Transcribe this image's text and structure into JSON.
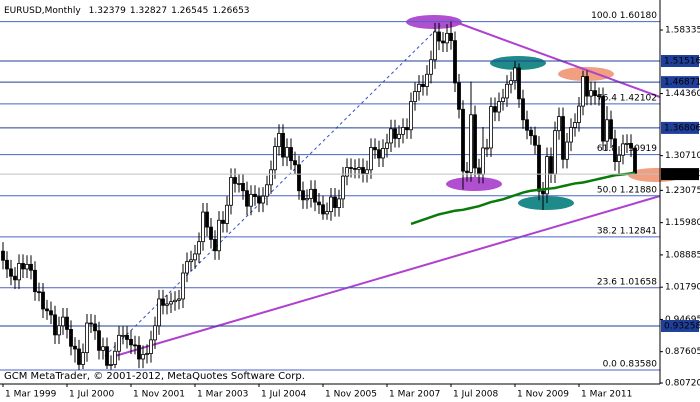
{
  "chart_data": {
    "type": "candlestick",
    "title": "EURUSD,Monthly",
    "footer": "GCM MetaTrader, © 2001-2012, MetaQuotes Software Corp.",
    "categories": [
      "1 Mar 1999",
      null,
      null,
      null,
      null,
      null,
      null,
      null,
      null,
      null,
      null,
      null,
      null,
      null,
      null,
      null,
      "1 Jul 2000",
      null,
      null,
      null,
      null,
      null,
      null,
      null,
      null,
      null,
      null,
      null,
      null,
      null,
      null,
      null,
      "1 Nov 2001",
      null,
      null,
      null,
      null,
      null,
      null,
      null,
      null,
      null,
      null,
      null,
      null,
      null,
      null,
      null,
      "1 Mar 2003",
      null,
      null,
      null,
      null,
      null,
      null,
      null,
      null,
      null,
      null,
      null,
      null,
      null,
      null,
      null,
      "1 Jul 2004",
      null,
      null,
      null,
      null,
      null,
      null,
      null,
      null,
      null,
      null,
      null,
      null,
      null,
      null,
      null,
      "1 Nov 2005",
      null,
      null,
      null,
      null,
      null,
      null,
      null,
      null,
      null,
      null,
      null,
      null,
      null,
      null,
      null,
      "1 Mar 2007",
      null,
      null,
      null,
      null,
      null,
      null,
      null,
      null,
      null,
      null,
      null,
      null,
      null,
      null,
      null,
      "1 Jul 2008",
      null,
      null,
      null,
      null,
      null,
      null,
      null,
      null,
      null,
      null,
      null,
      null,
      null,
      null,
      null,
      "1 Nov 2009",
      null,
      null,
      null,
      null,
      null,
      null,
      null,
      null,
      null,
      null,
      null,
      null,
      null,
      null,
      null,
      "1 Mar 2011",
      null,
      null,
      null,
      null,
      null,
      null,
      null,
      null,
      null,
      null,
      null,
      null,
      null,
      null
    ],
    "open": [
      1.097,
      1.077,
      1.058,
      1.042,
      1.034,
      1.07,
      1.058,
      1.068,
      1.055,
      1.008,
      1.007,
      0.97,
      0.966,
      0.957,
      0.913,
      0.933,
      0.952,
      0.925,
      0.888,
      0.882,
      0.848,
      0.874,
      0.939,
      0.937,
      0.922,
      0.879,
      0.887,
      0.846,
      0.848,
      0.877,
      0.912,
      0.912,
      0.903,
      0.891,
      0.89,
      0.86,
      0.87,
      0.872,
      0.902,
      0.933,
      0.992,
      0.978,
      0.981,
      0.986,
      0.989,
      0.992,
      1.049,
      1.074,
      1.078,
      1.091,
      1.118,
      1.183,
      1.15,
      1.123,
      1.098,
      1.165,
      1.158,
      1.198,
      1.259,
      1.246,
      1.246,
      1.23,
      1.196,
      1.222,
      1.217,
      1.203,
      1.218,
      1.243,
      1.276,
      1.327,
      1.356,
      1.304,
      1.325,
      1.296,
      1.287,
      1.23,
      1.21,
      1.213,
      1.233,
      1.205,
      1.199,
      1.179,
      1.184,
      1.216,
      1.193,
      1.212,
      1.262,
      1.281,
      1.279,
      1.277,
      1.281,
      1.268,
      1.276,
      1.325,
      1.32,
      1.302,
      1.323,
      1.335,
      1.366,
      1.345,
      1.354,
      1.369,
      1.364,
      1.426,
      1.448,
      1.464,
      1.459,
      1.486,
      1.518,
      1.579,
      1.559,
      1.555,
      1.576,
      1.56,
      1.467,
      1.409,
      1.273,
      1.27,
      1.397,
      1.28,
      1.266,
      1.324,
      1.324,
      1.415,
      1.403,
      1.426,
      1.434,
      1.464,
      1.472,
      1.5,
      1.432,
      1.386,
      1.363,
      1.351,
      1.33,
      1.229,
      1.223,
      1.305,
      1.267,
      1.362,
      1.393,
      1.299,
      1.337,
      1.369,
      1.38,
      1.416,
      1.481,
      1.438,
      1.45,
      1.439,
      1.437,
      1.339,
      1.386,
      1.344,
      1.294,
      1.308,
      1.333,
      1.334,
      1.32379
    ],
    "high": [
      1.117,
      1.097,
      1.078,
      1.062,
      1.09,
      1.09,
      1.088,
      1.088,
      1.075,
      1.028,
      1.027,
      0.99,
      0.986,
      0.977,
      0.953,
      0.972,
      0.972,
      0.945,
      0.908,
      0.902,
      0.894,
      0.959,
      0.959,
      0.957,
      0.942,
      0.907,
      0.907,
      0.868,
      0.897,
      0.932,
      0.932,
      0.932,
      0.923,
      0.911,
      0.91,
      0.89,
      0.892,
      0.922,
      0.953,
      1.012,
      1.012,
      1.001,
      1.006,
      1.009,
      1.012,
      1.069,
      1.094,
      1.098,
      1.111,
      1.138,
      1.203,
      1.203,
      1.17,
      1.143,
      1.185,
      1.185,
      1.218,
      1.279,
      1.279,
      1.266,
      1.266,
      1.25,
      1.242,
      1.242,
      1.237,
      1.238,
      1.263,
      1.296,
      1.347,
      1.376,
      1.376,
      1.345,
      1.345,
      1.316,
      1.307,
      1.25,
      1.233,
      1.253,
      1.253,
      1.225,
      1.219,
      1.204,
      1.236,
      1.236,
      1.232,
      1.282,
      1.301,
      1.301,
      1.299,
      1.301,
      1.301,
      1.296,
      1.345,
      1.345,
      1.34,
      1.343,
      1.355,
      1.386,
      1.386,
      1.374,
      1.389,
      1.389,
      1.446,
      1.468,
      1.484,
      1.484,
      1.506,
      1.538,
      1.599,
      1.599,
      1.579,
      1.596,
      1.6018,
      1.58,
      1.487,
      1.429,
      1.293,
      1.47,
      1.417,
      1.3,
      1.37,
      1.344,
      1.435,
      1.435,
      1.446,
      1.454,
      1.484,
      1.492,
      1.5145,
      1.51,
      1.452,
      1.406,
      1.371,
      1.371,
      1.35,
      1.249,
      1.325,
      1.325,
      1.382,
      1.413,
      1.413,
      1.357,
      1.389,
      1.4,
      1.436,
      1.4939,
      1.4939,
      1.47,
      1.47,
      1.457,
      1.457,
      1.416,
      1.406,
      1.364,
      1.328,
      1.353,
      1.354,
      1.354,
      1.32827
    ],
    "low": [
      1.057,
      1.038,
      1.022,
      1.014,
      1.014,
      1.038,
      1.038,
      1.035,
      0.988,
      0.987,
      0.95,
      0.946,
      0.937,
      0.893,
      0.893,
      0.913,
      0.905,
      0.868,
      0.852,
      0.8358,
      0.838,
      0.854,
      0.917,
      0.902,
      0.859,
      0.859,
      0.838,
      0.837,
      0.84,
      0.857,
      0.892,
      0.883,
      0.871,
      0.87,
      0.84,
      0.84,
      0.85,
      0.852,
      0.882,
      0.913,
      0.958,
      0.958,
      0.961,
      0.966,
      0.969,
      0.972,
      1.029,
      1.054,
      1.058,
      1.071,
      1.098,
      1.13,
      1.103,
      1.078,
      1.078,
      1.138,
      1.138,
      1.178,
      1.226,
      1.226,
      1.21,
      1.176,
      1.176,
      1.197,
      1.183,
      1.183,
      1.198,
      1.223,
      1.256,
      1.307,
      1.284,
      1.284,
      1.276,
      1.267,
      1.21,
      1.19,
      1.19,
      1.193,
      1.185,
      1.179,
      1.166,
      1.166,
      1.164,
      1.173,
      1.173,
      1.192,
      1.242,
      1.259,
      1.257,
      1.257,
      1.248,
      1.248,
      1.256,
      1.3,
      1.282,
      1.282,
      1.303,
      1.315,
      1.325,
      1.325,
      1.334,
      1.344,
      1.344,
      1.406,
      1.428,
      1.439,
      1.439,
      1.466,
      1.498,
      1.539,
      1.535,
      1.535,
      1.54,
      1.447,
      1.389,
      1.233,
      1.25,
      1.25,
      1.26,
      1.246,
      1.246,
      1.304,
      1.304,
      1.383,
      1.383,
      1.406,
      1.414,
      1.444,
      1.452,
      1.412,
      1.366,
      1.343,
      1.331,
      1.31,
      1.209,
      1.1876,
      1.203,
      1.247,
      1.247,
      1.342,
      1.279,
      1.279,
      1.317,
      1.349,
      1.36,
      1.396,
      1.418,
      1.418,
      1.419,
      1.417,
      1.319,
      1.319,
      1.324,
      1.274,
      1.262,
      1.288,
      1.313,
      1.304,
      1.26545
    ],
    "close": [
      1.077,
      1.058,
      1.042,
      1.034,
      1.07,
      1.058,
      1.068,
      1.055,
      1.008,
      1.007,
      0.97,
      0.966,
      0.957,
      0.913,
      0.933,
      0.952,
      0.925,
      0.888,
      0.882,
      0.848,
      0.874,
      0.939,
      0.937,
      0.922,
      0.879,
      0.887,
      0.846,
      0.848,
      0.877,
      0.912,
      0.912,
      0.903,
      0.891,
      0.89,
      0.86,
      0.87,
      0.872,
      0.902,
      0.933,
      0.992,
      0.978,
      0.981,
      0.986,
      0.989,
      0.992,
      1.049,
      1.074,
      1.078,
      1.091,
      1.118,
      1.183,
      1.15,
      1.123,
      1.098,
      1.165,
      1.158,
      1.198,
      1.259,
      1.246,
      1.246,
      1.23,
      1.196,
      1.222,
      1.217,
      1.203,
      1.218,
      1.243,
      1.276,
      1.327,
      1.356,
      1.304,
      1.325,
      1.296,
      1.287,
      1.23,
      1.21,
      1.213,
      1.233,
      1.205,
      1.199,
      1.179,
      1.184,
      1.216,
      1.193,
      1.212,
      1.262,
      1.281,
      1.279,
      1.277,
      1.281,
      1.268,
      1.276,
      1.325,
      1.32,
      1.302,
      1.323,
      1.335,
      1.366,
      1.345,
      1.354,
      1.369,
      1.364,
      1.426,
      1.448,
      1.464,
      1.459,
      1.486,
      1.518,
      1.579,
      1.559,
      1.555,
      1.576,
      1.56,
      1.467,
      1.409,
      1.273,
      1.27,
      1.397,
      1.28,
      1.266,
      1.324,
      1.324,
      1.415,
      1.403,
      1.426,
      1.434,
      1.464,
      1.472,
      1.5,
      1.432,
      1.386,
      1.363,
      1.351,
      1.33,
      1.229,
      1.223,
      1.305,
      1.267,
      1.362,
      1.393,
      1.299,
      1.337,
      1.369,
      1.38,
      1.416,
      1.481,
      1.438,
      1.45,
      1.439,
      1.437,
      1.339,
      1.386,
      1.344,
      1.294,
      1.308,
      1.333,
      1.334,
      1.3238,
      1.26653
    ],
    "ma": [
      null,
      null,
      null,
      null,
      null,
      null,
      null,
      null,
      null,
      null,
      null,
      null,
      null,
      null,
      null,
      null,
      null,
      null,
      null,
      null,
      null,
      null,
      null,
      null,
      null,
      null,
      null,
      null,
      null,
      null,
      null,
      null,
      null,
      null,
      null,
      null,
      null,
      null,
      null,
      null,
      null,
      null,
      null,
      null,
      null,
      null,
      null,
      null,
      null,
      null,
      null,
      null,
      null,
      null,
      null,
      null,
      null,
      null,
      null,
      null,
      null,
      null,
      null,
      null,
      null,
      null,
      null,
      null,
      null,
      null,
      null,
      null,
      null,
      null,
      null,
      null,
      null,
      null,
      null,
      null,
      null,
      null,
      null,
      null,
      null,
      null,
      null,
      null,
      null,
      null,
      null,
      null,
      null,
      null,
      null,
      null,
      null,
      null,
      null,
      null,
      null,
      null,
      1.157,
      1.16,
      1.163,
      1.166,
      1.169,
      1.172,
      1.175,
      1.178,
      1.18,
      1.182,
      1.184,
      1.186,
      1.187,
      1.188,
      1.19,
      1.192,
      1.194,
      1.196,
      1.199,
      1.202,
      1.205,
      1.207,
      1.209,
      1.211,
      1.214,
      1.217,
      1.22,
      1.223,
      1.226,
      1.228,
      1.23,
      1.231,
      1.232,
      1.233,
      1.234,
      1.235,
      1.236,
      1.238,
      1.24,
      1.242,
      1.244,
      1.246,
      1.247,
      1.248,
      1.25,
      1.252,
      1.254,
      1.256,
      1.258,
      1.26,
      1.262,
      1.264,
      1.265,
      1.266,
      1.267,
      1.268,
      1.269
    ],
    "up_color": "#ffffff",
    "down_color": "#000000",
    "ma_color": "#0a7a0a",
    "ylim": [
      0.805,
      1.6493
    ],
    "yticks": [
      1.58335,
      {
        "value": 1.4436,
        "label": "1.44360"
      },
      {
        "value": 1.3071,
        "label": "1.30710"
      },
      1.23075,
      {
        "value": 1.1598,
        "label": "1.15980"
      },
      1.08885,
      {
        "value": 1.0179,
        "label": "1.01790"
      },
      0.94695,
      0.87605,
      {
        "value": 0.8072,
        "label": "0.80720"
      }
    ],
    "price_lines": [
      1.51516,
      1.46871,
      1.36806,
      0.93258
    ],
    "price_line_color": "#1f3f9a",
    "fib_levels": [
      {
        "value": 1.6018,
        "label": "100.0 1.60180"
      },
      {
        "value": 1.42102,
        "label": "76.4 1.42102"
      },
      {
        "value": 1.30919,
        "label": "61.8 1.30919"
      },
      {
        "value": 1.2188,
        "label": "50.0 1.21880"
      },
      {
        "value": 1.12841,
        "label": "38.2 1.12841"
      },
      {
        "value": 1.01658,
        "label": "23.6 1.01658"
      },
      {
        "value": 0.8358,
        "label": "0.0 0.83580"
      }
    ],
    "fib_color": "#4a63c4"
  }
}
